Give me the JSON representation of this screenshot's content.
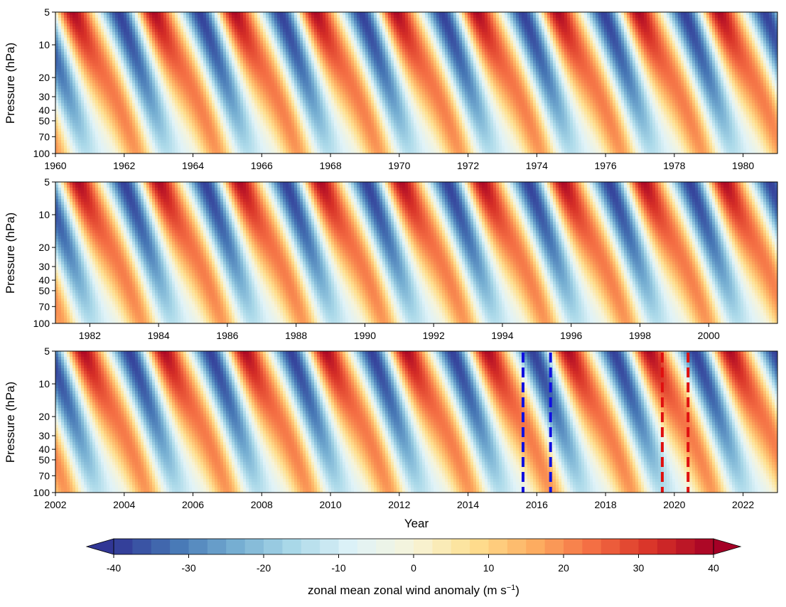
{
  "chart_data": [
    {
      "type": "heatmap",
      "panel": 1,
      "x_label": "",
      "y_label": "Pressure (hPa)",
      "xlim": [
        1960,
        1981
      ],
      "x_ticks": [
        1960,
        1962,
        1964,
        1966,
        1968,
        1970,
        1972,
        1974,
        1976,
        1978,
        1980
      ],
      "y_ticks": [
        5,
        10,
        20,
        30,
        40,
        50,
        70,
        100
      ],
      "y_scale": "log",
      "ylim": [
        100,
        5
      ],
      "phase_year": 1960.0,
      "markers": []
    },
    {
      "type": "heatmap",
      "panel": 2,
      "x_label": "",
      "y_label": "Pressure (hPa)",
      "xlim": [
        1981,
        2002
      ],
      "x_ticks": [
        1982,
        1984,
        1986,
        1988,
        1990,
        1992,
        1994,
        1996,
        1998,
        2000
      ],
      "y_ticks": [
        5,
        10,
        20,
        30,
        40,
        50,
        70,
        100
      ],
      "y_scale": "log",
      "ylim": [
        100,
        5
      ],
      "phase_year": 1960.0,
      "markers": []
    },
    {
      "type": "heatmap",
      "panel": 3,
      "x_label": "Year",
      "y_label": "Pressure (hPa)",
      "xlim": [
        2002,
        2023
      ],
      "x_ticks": [
        2002,
        2004,
        2006,
        2008,
        2010,
        2012,
        2014,
        2016,
        2018,
        2020,
        2022
      ],
      "y_ticks": [
        5,
        10,
        20,
        30,
        40,
        50,
        70,
        100
      ],
      "y_scale": "log",
      "ylim": [
        100,
        5
      ],
      "phase_year": 1960.0,
      "markers": [
        {
          "year": 2015.6,
          "color": "#1010e0"
        },
        {
          "year": 2016.4,
          "color": "#1010e0"
        },
        {
          "year": 2019.65,
          "color": "#e01010"
        },
        {
          "year": 2020.4,
          "color": "#e01010"
        }
      ]
    }
  ],
  "colorbar": {
    "label": "zonal mean zonal wind anomaly (m s",
    "label_exponent": "−1",
    "label_close": ")",
    "range": [
      -40,
      40
    ],
    "extend": "both",
    "levels": 32,
    "ticks": [
      -40,
      -30,
      -20,
      -10,
      0,
      10,
      20,
      30,
      40
    ],
    "tick_labels": [
      "-40",
      "-30",
      "-20",
      "-10",
      "0",
      "10",
      "20",
      "30",
      "40"
    ]
  },
  "qbo_period_years": 2.35,
  "colormap": [
    "#313695",
    "#4575b4",
    "#74add1",
    "#abd9e9",
    "#e0f3f8",
    "#f7f4d9",
    "#fee090",
    "#fdae61",
    "#f46d43",
    "#d73027",
    "#a50026"
  ]
}
